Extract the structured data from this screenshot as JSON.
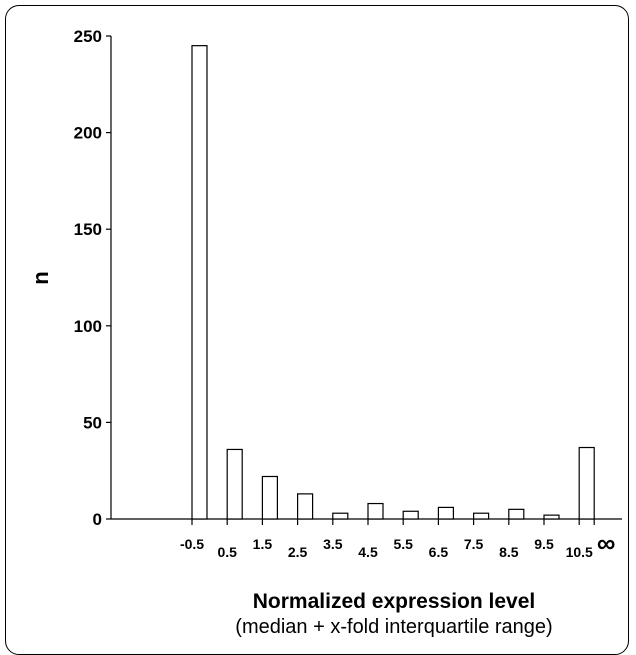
{
  "chart_data": {
    "type": "bar",
    "title": "",
    "xlabel": "Normalized expression level",
    "xlabel_sub": "(median + x-fold interquartile range)",
    "ylabel": "n",
    "ylim": [
      0,
      250
    ],
    "yticks": [
      0,
      50,
      100,
      150,
      200,
      250
    ],
    "xtick_labels": [
      "-0.5",
      "0.5",
      "1.5",
      "2.5",
      "3.5",
      "4.5",
      "5.5",
      "6.5",
      "7.5",
      "8.5",
      "9.5",
      "10.5",
      "∞"
    ],
    "categories": [
      "-0.5–0.5",
      "0.5–1.5",
      "1.5–2.5",
      "2.5–3.5",
      "3.5–4.5",
      "4.5–5.5",
      "5.5–6.5",
      "6.5–7.5",
      "7.5–8.5",
      "8.5–9.5",
      "9.5–10.5",
      "10.5–∞"
    ],
    "values": [
      245,
      36,
      22,
      13,
      3,
      8,
      4,
      6,
      3,
      5,
      2,
      37
    ],
    "bar_fill": "#ffffff",
    "bar_stroke": "#000000",
    "grid": false,
    "legend": "none"
  }
}
